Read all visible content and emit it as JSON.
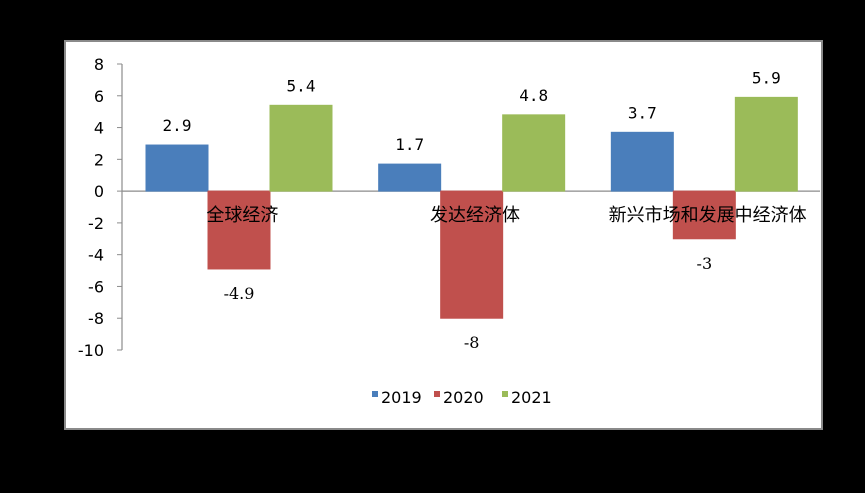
{
  "chart_data": {
    "type": "bar",
    "categories": [
      "全球经济",
      "发达经济体",
      "新兴市场和发展中经济体"
    ],
    "series": [
      {
        "name": "2019",
        "values": [
          2.9,
          1.7,
          3.7
        ],
        "color": "#4a7ebb",
        "label_text": [
          "2.9",
          "1.7",
          "3.7"
        ]
      },
      {
        "name": "2020",
        "values": [
          -4.9,
          -8,
          -3
        ],
        "color": "#c0504d",
        "label_text": [
          "-4.9",
          "-8",
          "-3"
        ]
      },
      {
        "name": "2021",
        "values": [
          5.4,
          4.8,
          5.9
        ],
        "color": "#9bbb59",
        "label_text": [
          "5.4",
          "4.8",
          "5.9"
        ]
      }
    ],
    "yticks": [
      "8",
      "6",
      "4",
      "2",
      "0",
      "-2",
      "-4",
      "-6",
      "-8",
      "-10"
    ],
    "ylim": [
      -10,
      8
    ],
    "legend_position": "bottom",
    "grid": false
  }
}
